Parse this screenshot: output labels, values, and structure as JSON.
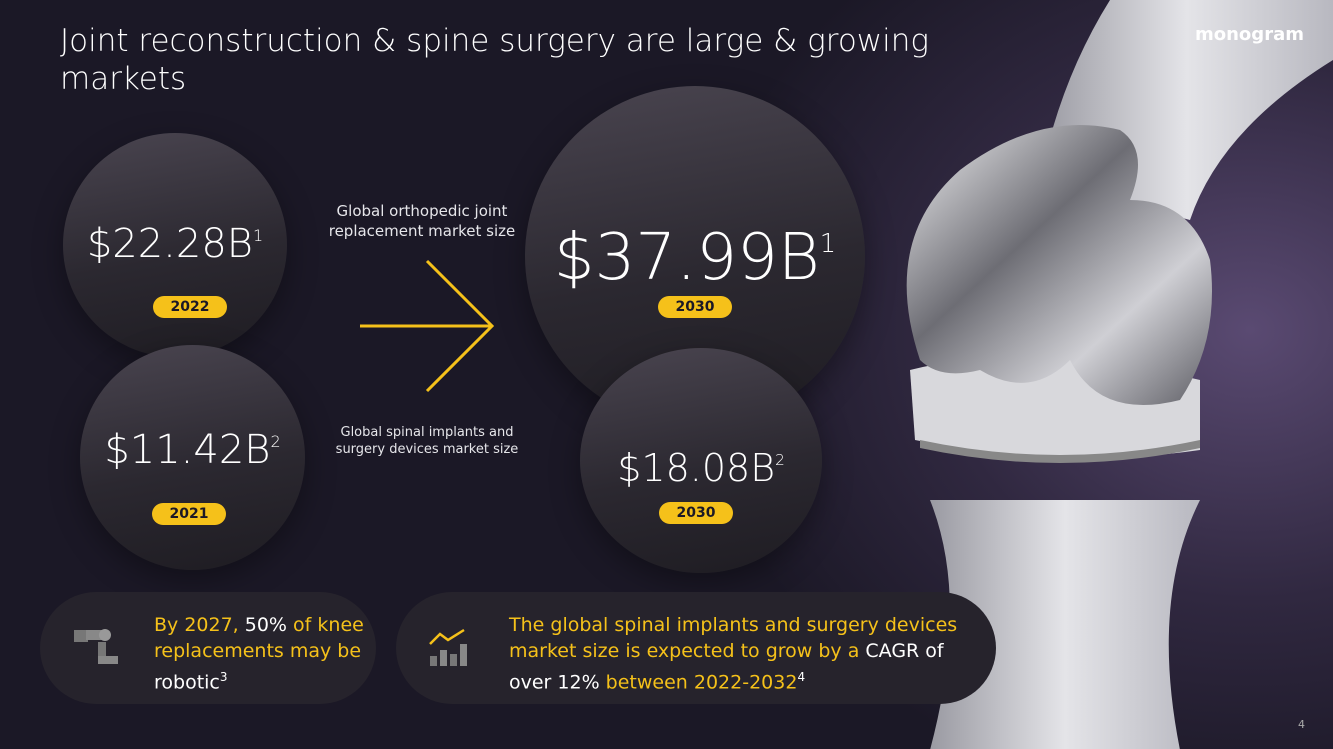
{
  "header": {
    "title": "Joint reconstruction & spine surgery are large & growing markets",
    "logo": "monogram"
  },
  "stats": [
    {
      "amount": "$22.28",
      "unit": "B",
      "note": "1",
      "year": "2022"
    },
    {
      "amount": "$11.42",
      "unit": "B",
      "note": "2",
      "year": "2021"
    },
    {
      "amount": "$37.99",
      "unit": "B",
      "note": "1",
      "year": "2030"
    },
    {
      "amount": "$18.08",
      "unit": "B",
      "note": "2",
      "year": "2030"
    }
  ],
  "labels": [
    "Global orthopedic joint replacement market size",
    "Global spinal implants and surgery devices market size"
  ],
  "callouts": [
    {
      "parts": [
        "By 2027,",
        " 50%",
        " of knee replacements may be",
        " robotic"
      ],
      "note": "3"
    },
    {
      "parts": [
        "The global spinal implants and surgery devices market size is expected to grow by a",
        " CAGR of over 12%",
        " between 2022-2032"
      ],
      "note": "4"
    }
  ],
  "page_number": "4"
}
